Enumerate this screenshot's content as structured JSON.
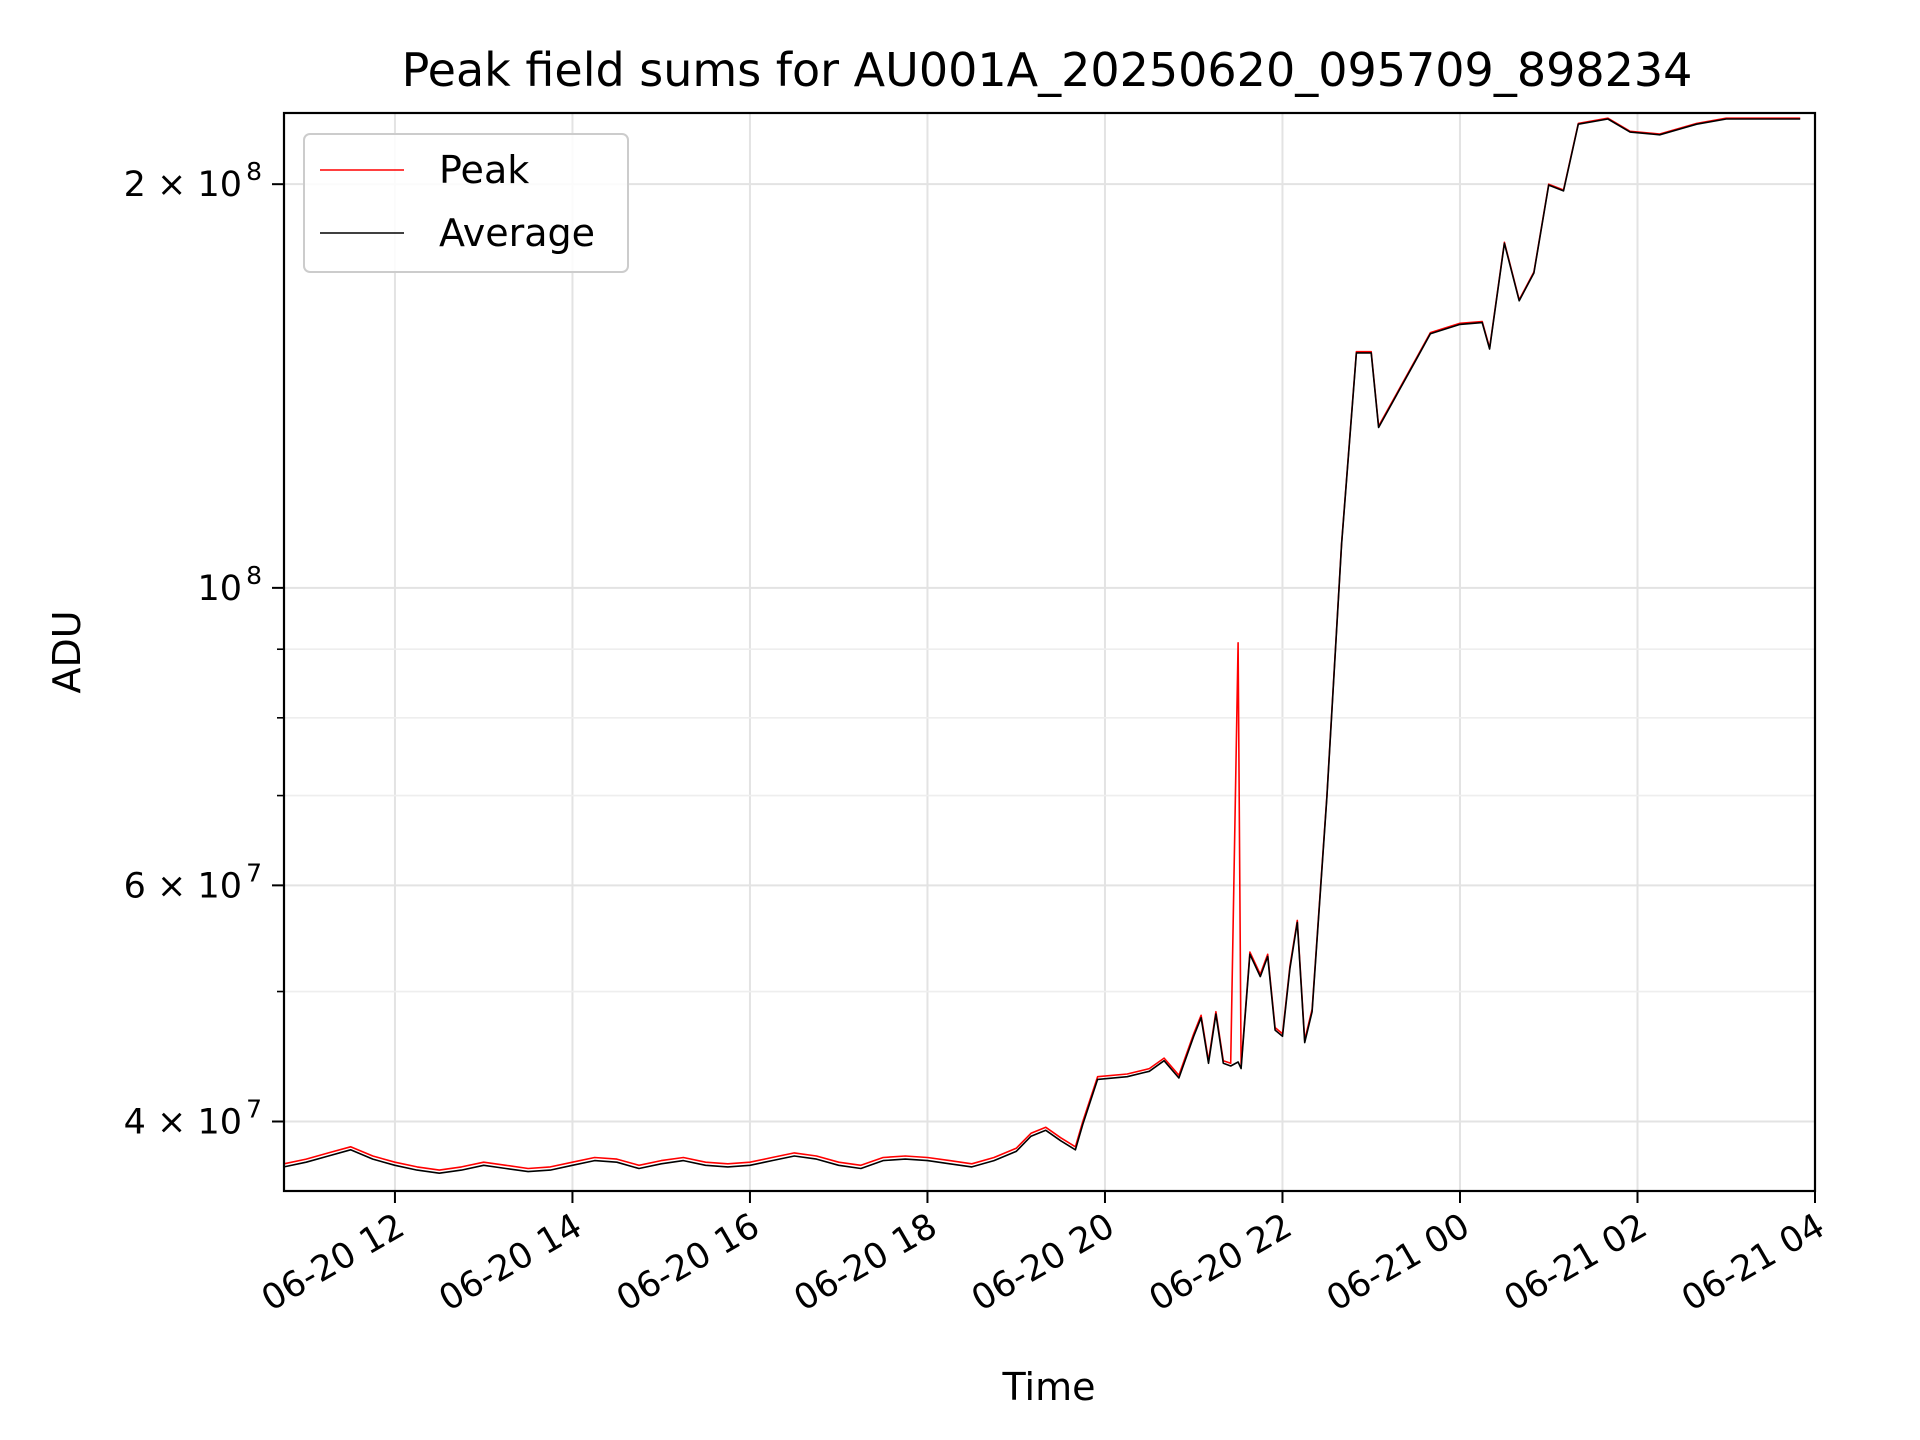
{
  "chart_data": {
    "type": "line",
    "title": "Peak field sums for AU001A_20250620_095709_898234",
    "xlabel": "Time",
    "ylabel": "ADU",
    "yscale": "log",
    "ylim": [
      35500000,
      226000000
    ],
    "xlim": [
      "2025-06-20 10:45",
      "2025-06-21 04:00"
    ],
    "grid": true,
    "legend_position": "top-left",
    "x_ticks": [
      {
        "t": "2025-06-20 12:00",
        "label": "06-20 12"
      },
      {
        "t": "2025-06-20 14:00",
        "label": "06-20 14"
      },
      {
        "t": "2025-06-20 16:00",
        "label": "06-20 16"
      },
      {
        "t": "2025-06-20 18:00",
        "label": "06-20 18"
      },
      {
        "t": "2025-06-20 20:00",
        "label": "06-20 20"
      },
      {
        "t": "2025-06-20 22:00",
        "label": "06-20 22"
      },
      {
        "t": "2025-06-21 00:00",
        "label": "06-21 00"
      },
      {
        "t": "2025-06-21 02:00",
        "label": "06-21 02"
      },
      {
        "t": "2025-06-21 04:00",
        "label": "06-21 04"
      }
    ],
    "y_ticks": [
      {
        "value": 40000000,
        "base": "4 × 10",
        "exp": "7"
      },
      {
        "value": 60000000,
        "base": "6 × 10",
        "exp": "7"
      },
      {
        "value": 100000000,
        "base": "10",
        "exp": "8"
      },
      {
        "value": 200000000,
        "base": "2 × 10",
        "exp": "8"
      }
    ],
    "y_minor_ticks": [
      50000000,
      70000000,
      80000000,
      90000000
    ],
    "series": [
      {
        "name": "Peak",
        "color": "#ff0000",
        "points": [
          [
            "2025-06-20 10:45",
            37.2
          ],
          [
            "2025-06-20 11:00",
            37.5
          ],
          [
            "2025-06-20 11:15",
            37.9
          ],
          [
            "2025-06-20 11:30",
            38.3
          ],
          [
            "2025-06-20 11:45",
            37.7
          ],
          [
            "2025-06-20 12:00",
            37.3
          ],
          [
            "2025-06-20 12:15",
            37.0
          ],
          [
            "2025-06-20 12:30",
            36.8
          ],
          [
            "2025-06-20 12:45",
            37.0
          ],
          [
            "2025-06-20 13:00",
            37.3
          ],
          [
            "2025-06-20 13:15",
            37.1
          ],
          [
            "2025-06-20 13:30",
            36.9
          ],
          [
            "2025-06-20 13:45",
            37.0
          ],
          [
            "2025-06-20 14:00",
            37.3
          ],
          [
            "2025-06-20 14:15",
            37.6
          ],
          [
            "2025-06-20 14:30",
            37.5
          ],
          [
            "2025-06-20 14:45",
            37.1
          ],
          [
            "2025-06-20 15:00",
            37.4
          ],
          [
            "2025-06-20 15:15",
            37.6
          ],
          [
            "2025-06-20 15:30",
            37.3
          ],
          [
            "2025-06-20 15:45",
            37.2
          ],
          [
            "2025-06-20 16:00",
            37.3
          ],
          [
            "2025-06-20 16:15",
            37.6
          ],
          [
            "2025-06-20 16:30",
            37.9
          ],
          [
            "2025-06-20 16:45",
            37.7
          ],
          [
            "2025-06-20 17:00",
            37.3
          ],
          [
            "2025-06-20 17:15",
            37.1
          ],
          [
            "2025-06-20 17:30",
            37.6
          ],
          [
            "2025-06-20 17:45",
            37.7
          ],
          [
            "2025-06-20 18:00",
            37.6
          ],
          [
            "2025-06-20 18:15",
            37.4
          ],
          [
            "2025-06-20 18:30",
            37.2
          ],
          [
            "2025-06-20 18:45",
            37.6
          ],
          [
            "2025-06-20 19:00",
            38.2
          ],
          [
            "2025-06-20 19:10",
            39.2
          ],
          [
            "2025-06-20 19:20",
            39.6
          ],
          [
            "2025-06-20 19:30",
            38.9
          ],
          [
            "2025-06-20 19:40",
            38.3
          ],
          [
            "2025-06-20 19:45",
            40.0
          ],
          [
            "2025-06-20 19:55",
            43.2
          ],
          [
            "2025-06-20 20:15",
            43.4
          ],
          [
            "2025-06-20 20:30",
            43.8
          ],
          [
            "2025-06-20 20:40",
            44.6
          ],
          [
            "2025-06-20 20:50",
            43.3
          ],
          [
            "2025-06-20 21:00",
            46.5
          ],
          [
            "2025-06-20 21:05",
            48.0
          ],
          [
            "2025-06-20 21:10",
            44.4
          ],
          [
            "2025-06-20 21:15",
            48.3
          ],
          [
            "2025-06-20 21:20",
            44.4
          ],
          [
            "2025-06-20 21:25",
            44.2
          ],
          [
            "2025-06-20 21:30",
            91.0
          ],
          [
            "2025-06-20 21:32",
            44.0
          ],
          [
            "2025-06-20 21:38",
            53.5
          ],
          [
            "2025-06-20 21:45",
            51.5
          ],
          [
            "2025-06-20 21:50",
            53.3
          ],
          [
            "2025-06-20 21:55",
            47.0
          ],
          [
            "2025-06-20 22:00",
            46.5
          ],
          [
            "2025-06-20 22:05",
            52.2
          ],
          [
            "2025-06-20 22:10",
            56.5
          ],
          [
            "2025-06-20 22:15",
            46.0
          ],
          [
            "2025-06-20 22:20",
            48.5
          ],
          [
            "2025-06-20 22:30",
            70.0
          ],
          [
            "2025-06-20 22:40",
            108.0
          ],
          [
            "2025-06-20 22:50",
            150.0
          ],
          [
            "2025-06-20 23:00",
            150.0
          ],
          [
            "2025-06-20 23:05",
            132.0
          ],
          [
            "2025-06-20 23:30",
            148.0
          ],
          [
            "2025-06-20 23:40",
            155.0
          ],
          [
            "2025-06-21 00:00",
            157.5
          ],
          [
            "2025-06-21 00:15",
            158.0
          ],
          [
            "2025-06-21 00:20",
            151.0
          ],
          [
            "2025-06-21 00:30",
            181.0
          ],
          [
            "2025-06-21 00:40",
            164.0
          ],
          [
            "2025-06-21 00:50",
            172.0
          ],
          [
            "2025-06-21 01:00",
            200.0
          ],
          [
            "2025-06-21 01:10",
            198.0
          ],
          [
            "2025-06-21 01:20",
            222.0
          ],
          [
            "2025-06-21 01:40",
            224.0
          ],
          [
            "2025-06-21 01:55",
            219.0
          ],
          [
            "2025-06-21 02:15",
            218.0
          ],
          [
            "2025-06-21 02:40",
            222.0
          ],
          [
            "2025-06-21 03:00",
            224.0
          ],
          [
            "2025-06-21 03:30",
            224.0
          ],
          [
            "2025-06-21 03:50",
            224.0
          ]
        ]
      },
      {
        "name": "Average",
        "color": "#000000",
        "points": [
          [
            "2025-06-20 10:45",
            37.0
          ],
          [
            "2025-06-20 11:00",
            37.3
          ],
          [
            "2025-06-20 11:15",
            37.7
          ],
          [
            "2025-06-20 11:30",
            38.1
          ],
          [
            "2025-06-20 11:45",
            37.5
          ],
          [
            "2025-06-20 12:00",
            37.1
          ],
          [
            "2025-06-20 12:15",
            36.8
          ],
          [
            "2025-06-20 12:30",
            36.6
          ],
          [
            "2025-06-20 12:45",
            36.8
          ],
          [
            "2025-06-20 13:00",
            37.1
          ],
          [
            "2025-06-20 13:15",
            36.9
          ],
          [
            "2025-06-20 13:30",
            36.7
          ],
          [
            "2025-06-20 13:45",
            36.8
          ],
          [
            "2025-06-20 14:00",
            37.1
          ],
          [
            "2025-06-20 14:15",
            37.4
          ],
          [
            "2025-06-20 14:30",
            37.3
          ],
          [
            "2025-06-20 14:45",
            36.9
          ],
          [
            "2025-06-20 15:00",
            37.2
          ],
          [
            "2025-06-20 15:15",
            37.4
          ],
          [
            "2025-06-20 15:30",
            37.1
          ],
          [
            "2025-06-20 15:45",
            37.0
          ],
          [
            "2025-06-20 16:00",
            37.1
          ],
          [
            "2025-06-20 16:15",
            37.4
          ],
          [
            "2025-06-20 16:30",
            37.7
          ],
          [
            "2025-06-20 16:45",
            37.5
          ],
          [
            "2025-06-20 17:00",
            37.1
          ],
          [
            "2025-06-20 17:15",
            36.9
          ],
          [
            "2025-06-20 17:30",
            37.4
          ],
          [
            "2025-06-20 17:45",
            37.5
          ],
          [
            "2025-06-20 18:00",
            37.4
          ],
          [
            "2025-06-20 18:15",
            37.2
          ],
          [
            "2025-06-20 18:30",
            37.0
          ],
          [
            "2025-06-20 18:45",
            37.4
          ],
          [
            "2025-06-20 19:00",
            38.0
          ],
          [
            "2025-06-20 19:10",
            39.0
          ],
          [
            "2025-06-20 19:20",
            39.4
          ],
          [
            "2025-06-20 19:30",
            38.7
          ],
          [
            "2025-06-20 19:40",
            38.1
          ],
          [
            "2025-06-20 19:45",
            39.8
          ],
          [
            "2025-06-20 19:55",
            43.0
          ],
          [
            "2025-06-20 20:15",
            43.2
          ],
          [
            "2025-06-20 20:30",
            43.6
          ],
          [
            "2025-06-20 20:40",
            44.4
          ],
          [
            "2025-06-20 20:50",
            43.1
          ],
          [
            "2025-06-20 21:00",
            46.3
          ],
          [
            "2025-06-20 21:05",
            47.8
          ],
          [
            "2025-06-20 21:10",
            44.2
          ],
          [
            "2025-06-20 21:15",
            48.1
          ],
          [
            "2025-06-20 21:20",
            44.2
          ],
          [
            "2025-06-20 21:25",
            44.0
          ],
          [
            "2025-06-20 21:30",
            44.3
          ],
          [
            "2025-06-20 21:32",
            43.8
          ],
          [
            "2025-06-20 21:38",
            53.3
          ],
          [
            "2025-06-20 21:45",
            51.3
          ],
          [
            "2025-06-20 21:50",
            53.1
          ],
          [
            "2025-06-20 21:55",
            46.8
          ],
          [
            "2025-06-20 22:00",
            46.3
          ],
          [
            "2025-06-20 22:05",
            52.0
          ],
          [
            "2025-06-20 22:10",
            56.3
          ],
          [
            "2025-06-20 22:15",
            45.8
          ],
          [
            "2025-06-20 22:20",
            48.3
          ],
          [
            "2025-06-20 22:30",
            69.8
          ],
          [
            "2025-06-20 22:40",
            107.8
          ],
          [
            "2025-06-20 22:50",
            149.7
          ],
          [
            "2025-06-20 23:00",
            149.7
          ],
          [
            "2025-06-20 23:05",
            131.7
          ],
          [
            "2025-06-20 23:30",
            147.7
          ],
          [
            "2025-06-20 23:40",
            154.7
          ],
          [
            "2025-06-21 00:00",
            157.2
          ],
          [
            "2025-06-21 00:15",
            157.7
          ],
          [
            "2025-06-21 00:20",
            150.7
          ],
          [
            "2025-06-21 00:30",
            180.7
          ],
          [
            "2025-06-21 00:40",
            163.7
          ],
          [
            "2025-06-21 00:50",
            171.7
          ],
          [
            "2025-06-21 01:00",
            199.7
          ],
          [
            "2025-06-21 01:10",
            197.7
          ],
          [
            "2025-06-21 01:20",
            221.7
          ],
          [
            "2025-06-21 01:40",
            223.7
          ],
          [
            "2025-06-21 01:55",
            218.7
          ],
          [
            "2025-06-21 02:15",
            217.7
          ],
          [
            "2025-06-21 02:40",
            221.7
          ],
          [
            "2025-06-21 03:00",
            223.7
          ],
          [
            "2025-06-21 03:30",
            223.7
          ],
          [
            "2025-06-21 03:50",
            223.7
          ]
        ]
      }
    ],
    "y_unit_scale": 1000000
  }
}
